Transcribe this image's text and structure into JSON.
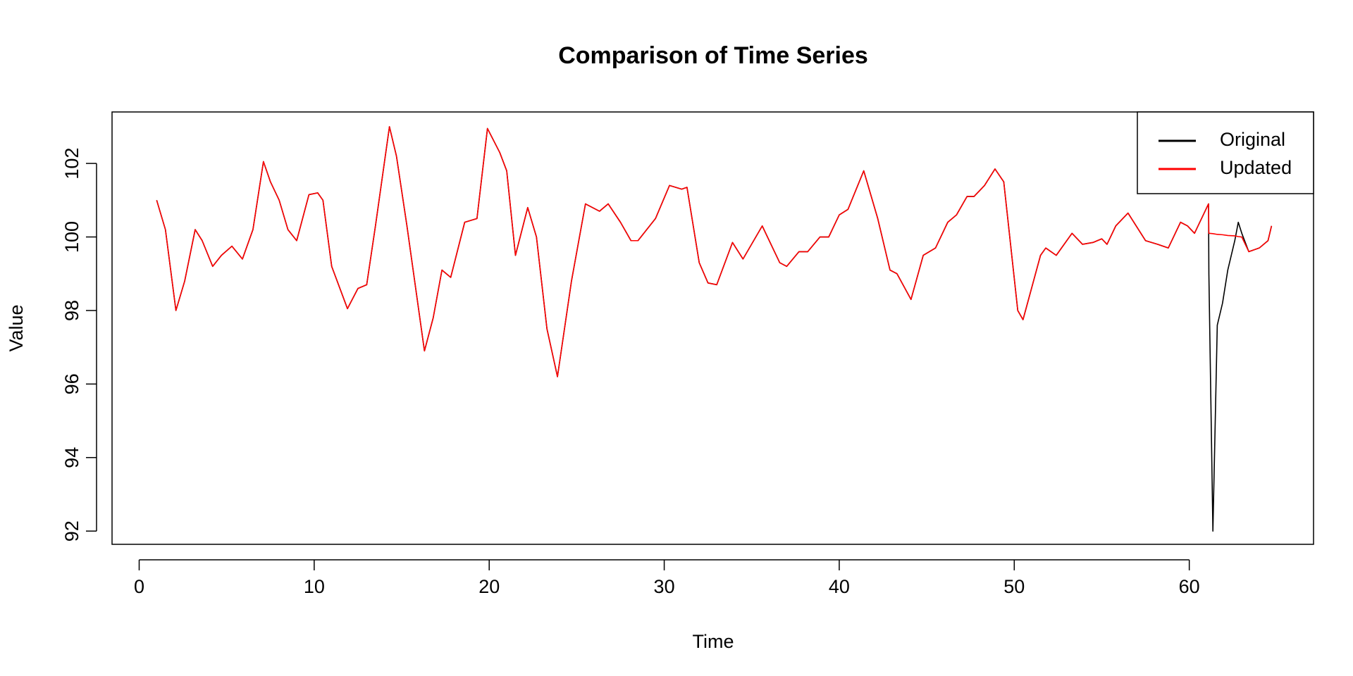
{
  "chart_data": {
    "type": "line",
    "title": "Comparison of Time Series",
    "x_label": "Time",
    "y_label": "Value",
    "x": [
      1,
      1.5,
      2.1,
      2.6,
      3.2,
      3.6,
      4.2,
      4.7,
      5.3,
      5.9,
      6.5,
      7.1,
      7.5,
      8,
      8.5,
      9,
      9.7,
      10.2,
      10.5,
      11,
      11.9,
      12.5,
      13,
      13.5,
      14.3,
      14.7,
      15.3,
      16.3,
      16.8,
      17.3,
      17.8,
      18.6,
      19.3,
      19.9,
      20.6,
      21,
      21.5,
      22.2,
      22.7,
      23.3,
      23.9,
      24.7,
      25.5,
      26.3,
      26.8,
      27.5,
      28.1,
      28.5,
      29.5,
      30.3,
      31,
      31.3,
      32,
      32.5,
      33,
      33.9,
      34.5,
      35.6,
      36.6,
      37,
      37.7,
      38.2,
      38.9,
      39.4,
      40,
      40.5,
      41.4,
      42.2,
      42.9,
      43.3,
      44.1,
      44.8,
      45.5,
      46.2,
      46.7,
      47.3,
      47.7,
      48.3,
      48.9,
      49.4,
      50.2,
      50.5,
      51.5,
      51.8,
      52.4,
      53.3,
      53.9,
      54.5,
      55,
      55.3,
      55.8,
      56.5,
      57.5,
      58.2,
      58.8,
      59.5,
      59.9,
      60.3,
      60.8,
      61.1,
      61.12,
      61.35,
      61.6,
      61.9,
      62.2,
      62.6,
      62.8,
      63,
      63.4,
      64,
      64.5,
      64.7
    ],
    "series": [
      {
        "name": "Original",
        "color": "#000000",
        "values": [
          101.0,
          100.2,
          98.0,
          98.8,
          100.2,
          99.9,
          99.2,
          99.5,
          99.75,
          99.4,
          100.2,
          102.05,
          101.5,
          101.0,
          100.2,
          99.9,
          101.15,
          101.2,
          101.0,
          99.2,
          98.05,
          98.6,
          98.7,
          100.3,
          103.0,
          102.2,
          100.3,
          96.9,
          97.8,
          99.1,
          98.9,
          100.4,
          100.5,
          102.95,
          102.3,
          101.8,
          99.5,
          100.8,
          100.0,
          97.5,
          96.2,
          98.8,
          100.9,
          100.7,
          100.9,
          100.4,
          99.9,
          99.9,
          100.5,
          101.4,
          101.3,
          101.35,
          99.3,
          98.75,
          98.7,
          99.85,
          99.4,
          100.3,
          99.3,
          99.2,
          99.6,
          99.6,
          100.0,
          100.0,
          100.6,
          100.75,
          101.8,
          100.5,
          99.1,
          99.0,
          98.3,
          99.5,
          99.7,
          100.4,
          100.6,
          101.1,
          101.1,
          101.4,
          101.85,
          101.5,
          98.0,
          97.75,
          99.5,
          99.7,
          99.5,
          100.1,
          99.8,
          99.85,
          99.95,
          99.8,
          100.3,
          100.65,
          99.9,
          99.8,
          99.7,
          100.4,
          100.3,
          100.1,
          100.6,
          100.9,
          99.0,
          92.0,
          97.6,
          98.2,
          99.1,
          99.9,
          100.4,
          100.1,
          99.6,
          99.7,
          99.9,
          100.3
        ]
      },
      {
        "name": "Updated",
        "color": "#ff0000",
        "values": [
          101.0,
          100.2,
          98.0,
          98.8,
          100.2,
          99.9,
          99.2,
          99.5,
          99.75,
          99.4,
          100.2,
          102.05,
          101.5,
          101.0,
          100.2,
          99.9,
          101.15,
          101.2,
          101.0,
          99.2,
          98.05,
          98.6,
          98.7,
          100.3,
          103.0,
          102.2,
          100.3,
          96.9,
          97.8,
          99.1,
          98.9,
          100.4,
          100.5,
          102.95,
          102.3,
          101.8,
          99.5,
          100.8,
          100.0,
          97.5,
          96.2,
          98.8,
          100.9,
          100.7,
          100.9,
          100.4,
          99.9,
          99.9,
          100.5,
          101.4,
          101.3,
          101.35,
          99.3,
          98.75,
          98.7,
          99.85,
          99.4,
          100.3,
          99.3,
          99.2,
          99.6,
          99.6,
          100.0,
          100.0,
          100.6,
          100.75,
          101.8,
          100.5,
          99.1,
          99.0,
          98.3,
          99.5,
          99.7,
          100.4,
          100.6,
          101.1,
          101.1,
          101.4,
          101.85,
          101.5,
          98.0,
          97.75,
          99.5,
          99.7,
          99.5,
          100.1,
          99.8,
          99.85,
          99.95,
          99.8,
          100.3,
          100.65,
          99.9,
          99.8,
          99.7,
          100.4,
          100.3,
          100.1,
          100.6,
          100.9,
          100.1,
          100.09,
          100.07,
          100.06,
          100.04,
          100.03,
          100.01,
          100.0,
          99.6,
          99.7,
          99.9,
          100.3
        ]
      }
    ],
    "xlim": [
      -1.55,
      67.1
    ],
    "ylim": [
      91.64,
      103.4
    ],
    "xticks": [
      0,
      10,
      20,
      30,
      40,
      50,
      60
    ],
    "yticks": [
      92,
      94,
      96,
      98,
      100,
      102
    ],
    "legend": "topright"
  }
}
